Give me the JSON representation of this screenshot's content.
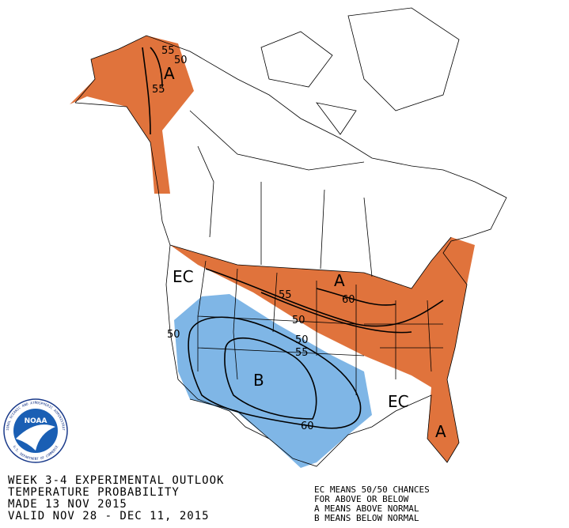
{
  "map": {
    "labels": {
      "alaska_55_top": "55",
      "alaska_50": "50",
      "alaska_A": "A",
      "alaska_55_low": "55",
      "ec_west": "EC",
      "ec_southeast": "EC",
      "north_A": "A",
      "north_60": "60",
      "north_55": "55",
      "north_50": "50",
      "florida_A": "A",
      "blue_50_west": "50",
      "blue_50": "50",
      "blue_55": "55",
      "blue_B": "B",
      "blue_60": "60"
    }
  },
  "logo": {
    "name": "NOAA",
    "ring_top": "NATIONAL OCEANIC AND ATMOSPHERIC ADMINISTRATION",
    "ring_bottom": "U.S. DEPARTMENT OF COMMERCE"
  },
  "header": {
    "lines": [
      "WEEK 3-4 EXPERIMENTAL OUTLOOK",
      "TEMPERATURE PROBABILITY",
      "MADE  13 NOV 2015",
      "VALID  NOV 28 - DEC 11, 2015"
    ]
  },
  "legend": {
    "lines": [
      "EC MEANS 50/50 CHANCES",
      "FOR ABOVE OR BELOW",
      "A MEANS ABOVE NORMAL",
      "B MEANS BELOW NORMAL"
    ]
  }
}
